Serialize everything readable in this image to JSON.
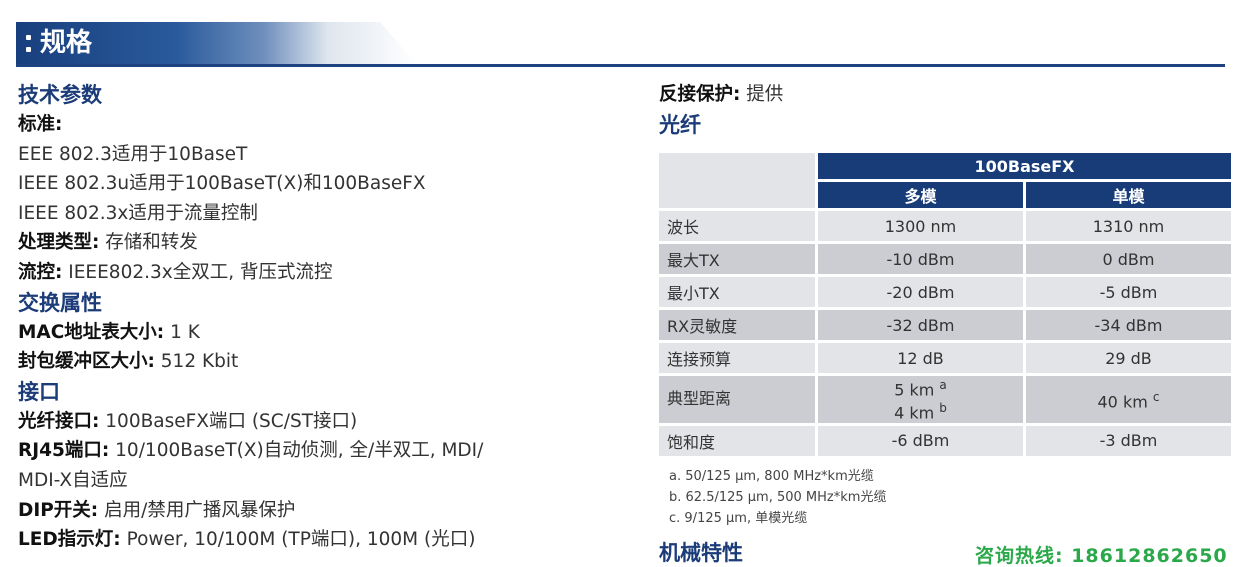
{
  "banner": {
    "title": "规格"
  },
  "left": {
    "tech_title": "技术参数",
    "standard_label": "标准:",
    "standards": [
      "EEE 802.3适用于10BaseT",
      "IEEE 802.3u适用于100BaseT(X)和100BaseFX",
      "IEEE 802.3x适用于流量控制"
    ],
    "processing_label": "处理类型:",
    "processing_value": " 存储和转发",
    "flow_label": "流控:",
    "flow_value": " IEEE802.3x全双工, 背压式流控",
    "switch_title": "交换属性",
    "mac_label": "MAC地址表大小:",
    "mac_value": " 1 K",
    "buffer_label": "封包缓冲区大小:",
    "buffer_value": " 512 Kbit",
    "interface_title": "接口",
    "fiber_port_label": "光纤接口:",
    "fiber_port_value": " 100BaseFX端口 (SC/ST接口)",
    "rj45_label": "RJ45端口:",
    "rj45_value_1": " 10/100BaseT(X)自动侦测, 全/半双工, MDI/",
    "rj45_value_2": "MDI-X自适应",
    "dip_label": "DIP开关:",
    "dip_value": " 启用/禁用广播风暴保护",
    "led_label": "LED指示灯:",
    "led_value": " Power, 10/100M (TP端口), 100M (光口)"
  },
  "right": {
    "reverse_label": "反接保护:",
    "reverse_value": " 提供",
    "fiber_title": "光纤",
    "table": {
      "header_main": "100BaseFX",
      "header_multi": "多模",
      "header_single": "单模",
      "rows": [
        {
          "label": "波长",
          "multi": "1300 nm",
          "single": "1310 nm"
        },
        {
          "label": "最大TX",
          "multi": "-10 dBm",
          "single": "0 dBm"
        },
        {
          "label": "最小TX",
          "multi": "-20 dBm",
          "single": "-5 dBm"
        },
        {
          "label": "RX灵敏度",
          "multi": "-32 dBm",
          "single": "-34 dBm"
        },
        {
          "label": "连接预算",
          "multi": "12 dB",
          "single": "29 dB"
        },
        {
          "label": "典型距离",
          "multi_1": "5 km",
          "multi_1_sup": "a",
          "multi_2": "4 km",
          "multi_2_sup": "b",
          "single": "40 km",
          "single_sup": "c"
        },
        {
          "label": "饱和度",
          "multi": "-6 dBm",
          "single": "-3 dBm"
        }
      ]
    },
    "notes": [
      "a. 50/125 μm, 800 MHz*km光缆",
      "b. 62.5/125 μm, 500 MHz*km光缆",
      "c. 9/125 μm, 单模光缆"
    ],
    "mech_title": "机械特性"
  },
  "hotline": "咨询热线: 18612862650"
}
